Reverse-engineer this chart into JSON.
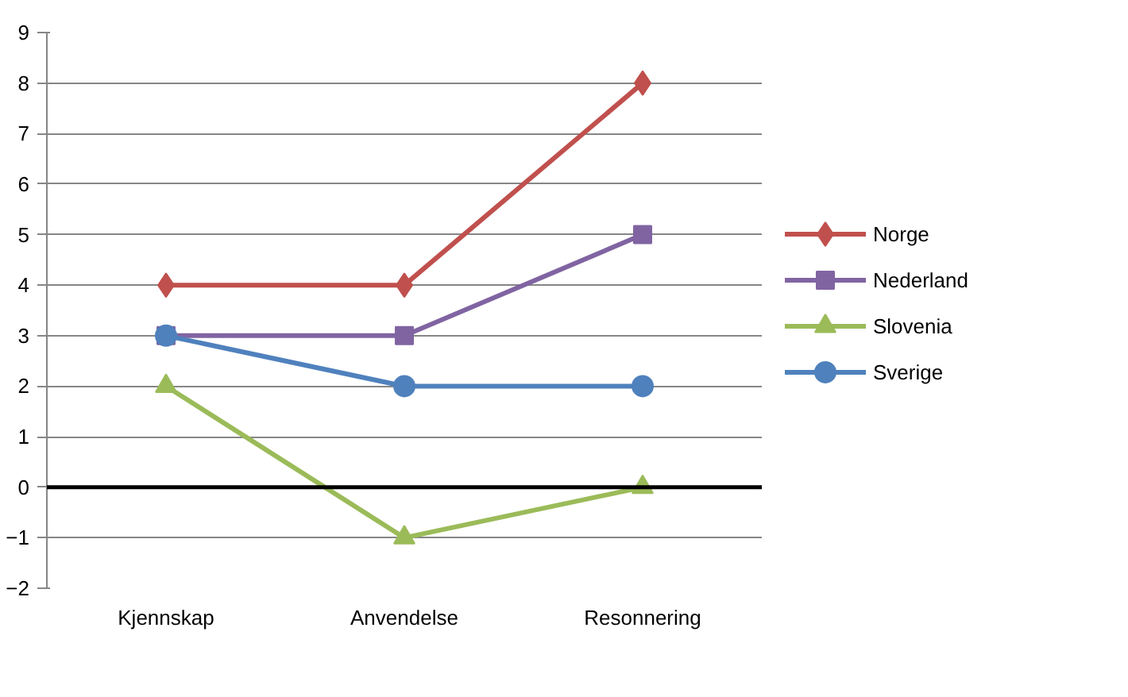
{
  "chart_data": {
    "type": "line",
    "categories": [
      "Kjennskap",
      "Anvendelse",
      "Resonnering"
    ],
    "series": [
      {
        "name": "Norge",
        "color": "#c0504d",
        "marker": "diamond",
        "values": [
          4,
          4,
          8
        ]
      },
      {
        "name": "Nederland",
        "color": "#8064a2",
        "marker": "square",
        "values": [
          3,
          3,
          5
        ]
      },
      {
        "name": "Slovenia",
        "color": "#9bbb59",
        "marker": "triangle",
        "values": [
          2,
          -1,
          0
        ]
      },
      {
        "name": "Sverige",
        "color": "#4f81bd",
        "marker": "circle",
        "values": [
          3,
          2,
          2
        ]
      }
    ],
    "ylim": [
      -2,
      9
    ],
    "yticks": [
      -2,
      -1,
      0,
      1,
      2,
      3,
      4,
      5,
      6,
      7,
      8,
      9
    ],
    "grid": "y",
    "legend": "right",
    "line_style": "solid"
  }
}
